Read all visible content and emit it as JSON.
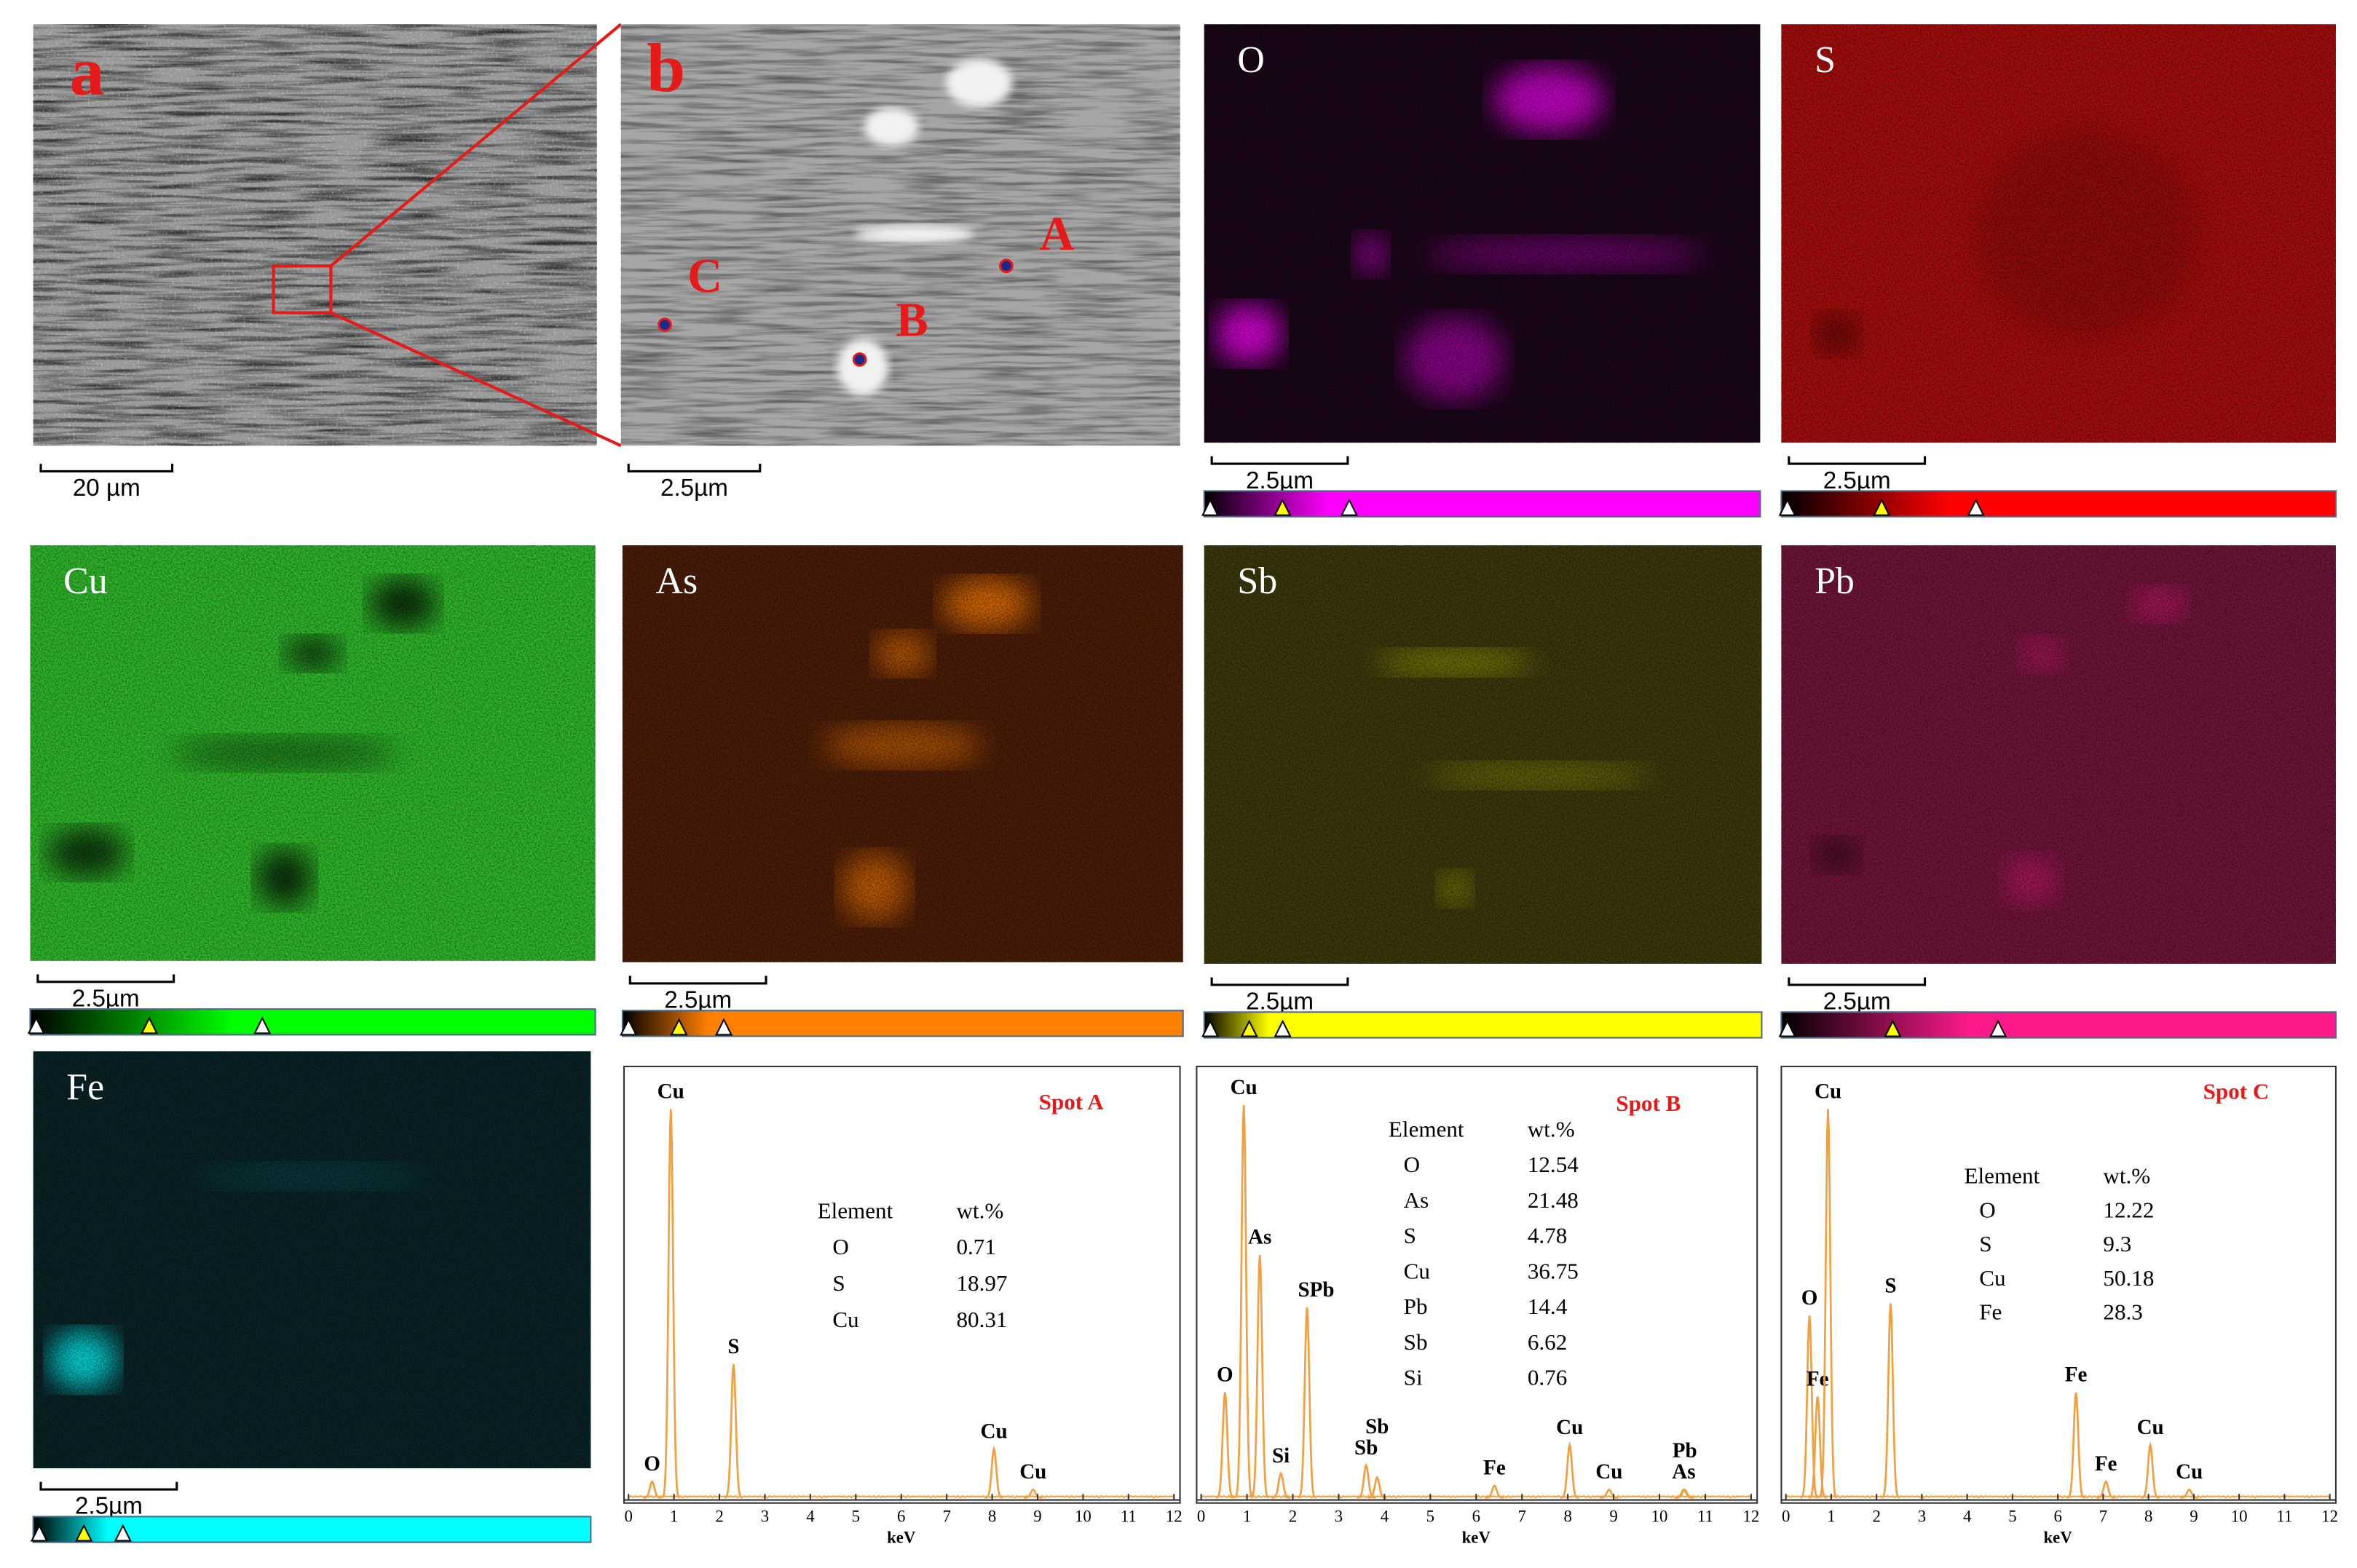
{
  "panels": [
    {
      "label": "a",
      "scale": "20 µm"
    },
    {
      "label": "b",
      "scale": "2.5µm",
      "spots": [
        "A",
        "B",
        "C"
      ]
    }
  ],
  "maps": [
    {
      "element": "O",
      "scale": "2.5µm",
      "color": "#ff00ff",
      "background": "#1a0618"
    },
    {
      "element": "S",
      "scale": "2.5µm",
      "color": "#ff0000",
      "background": "#a30d0d"
    },
    {
      "element": "Cu",
      "scale": "2.5µm",
      "color": "#00ff00",
      "background": "#2fb52a"
    },
    {
      "element": "As",
      "scale": "2.5µm",
      "color": "#ff7f00",
      "background": "#4a1d08"
    },
    {
      "element": "Sb",
      "scale": "2.5µm",
      "color": "#ffff00",
      "background": "#3a380c"
    },
    {
      "element": "Pb",
      "scale": "2.5µm",
      "color": "#ff1a8c",
      "background": "#6e1438"
    },
    {
      "element": "Fe",
      "scale": "2.5µm",
      "color": "#00ffff",
      "background": "#0a2226"
    }
  ],
  "spectra": [
    {
      "title": "Spot A",
      "xlabel": "keV",
      "xlim": [
        0,
        12
      ],
      "xticks": [
        0,
        1,
        2,
        3,
        4,
        5,
        6,
        7,
        8,
        9,
        10,
        11,
        12
      ],
      "color": "#f0a040",
      "peaks": [
        {
          "label": "O",
          "x": 0.52,
          "height": 0.04
        },
        {
          "label": "Cu",
          "x": 0.93,
          "height": 0.96
        },
        {
          "label": "S",
          "x": 2.31,
          "height": 0.33
        },
        {
          "label": "Cu",
          "x": 8.04,
          "height": 0.12
        },
        {
          "label": "Cu",
          "x": 8.9,
          "height": 0.02
        }
      ],
      "table": {
        "header": [
          "Element",
          "wt.%"
        ],
        "rows": [
          [
            "O",
            "0.71"
          ],
          [
            "S",
            "18.97"
          ],
          [
            "Cu",
            "80.31"
          ]
        ]
      }
    },
    {
      "title": "Spot B",
      "xlabel": "keV",
      "xlim": [
        0,
        12
      ],
      "xticks": [
        0,
        1,
        2,
        3,
        4,
        5,
        6,
        7,
        8,
        9,
        10,
        11,
        12
      ],
      "color": "#f0a040",
      "peaks": [
        {
          "label": "O",
          "x": 0.52,
          "height": 0.26
        },
        {
          "label": "Cu",
          "x": 0.93,
          "height": 0.97
        },
        {
          "label": "As",
          "x": 1.28,
          "height": 0.6
        },
        {
          "label": "Si",
          "x": 1.74,
          "height": 0.06
        },
        {
          "label": "SPb",
          "x": 2.31,
          "height": 0.47
        },
        {
          "label": "Sb",
          "x": 3.6,
          "height": 0.08
        },
        {
          "label": "Sb",
          "x": 3.84,
          "height": 0.05
        },
        {
          "label": "Fe",
          "x": 6.4,
          "height": 0.03
        },
        {
          "label": "Cu",
          "x": 8.04,
          "height": 0.13
        },
        {
          "label": "Cu",
          "x": 8.9,
          "height": 0.02
        },
        {
          "label": "As",
          "x": 10.53,
          "height": 0.02
        },
        {
          "label": "Pb",
          "x": 10.55,
          "height": 0.02
        }
      ],
      "table": {
        "header": [
          "Element",
          "wt.%"
        ],
        "rows": [
          [
            "O",
            "12.54"
          ],
          [
            "As",
            "21.48"
          ],
          [
            "S",
            "4.78"
          ],
          [
            "Cu",
            "36.75"
          ],
          [
            "Pb",
            "14.4"
          ],
          [
            "Sb",
            "6.62"
          ],
          [
            "Si",
            "0.76"
          ]
        ]
      }
    },
    {
      "title": "Spot C",
      "xlabel": "keV",
      "xlim": [
        0,
        12
      ],
      "xticks": [
        0,
        1,
        2,
        3,
        4,
        5,
        6,
        7,
        8,
        9,
        10,
        11,
        12
      ],
      "color": "#f0a040",
      "peaks": [
        {
          "label": "O",
          "x": 0.52,
          "height": 0.45
        },
        {
          "label": "Fe",
          "x": 0.7,
          "height": 0.25
        },
        {
          "label": "Cu",
          "x": 0.93,
          "height": 0.96
        },
        {
          "label": "S",
          "x": 2.31,
          "height": 0.48
        },
        {
          "label": "Fe",
          "x": 6.4,
          "height": 0.26
        },
        {
          "label": "Fe",
          "x": 7.06,
          "height": 0.04
        },
        {
          "label": "Cu",
          "x": 8.04,
          "height": 0.13
        },
        {
          "label": "Cu",
          "x": 8.9,
          "height": 0.02
        }
      ],
      "table": {
        "header": [
          "Element",
          "wt.%"
        ],
        "rows": [
          [
            "O",
            "12.22"
          ],
          [
            "S",
            "9.3"
          ],
          [
            "Cu",
            "50.18"
          ],
          [
            "Fe",
            "28.3"
          ]
        ]
      }
    }
  ]
}
